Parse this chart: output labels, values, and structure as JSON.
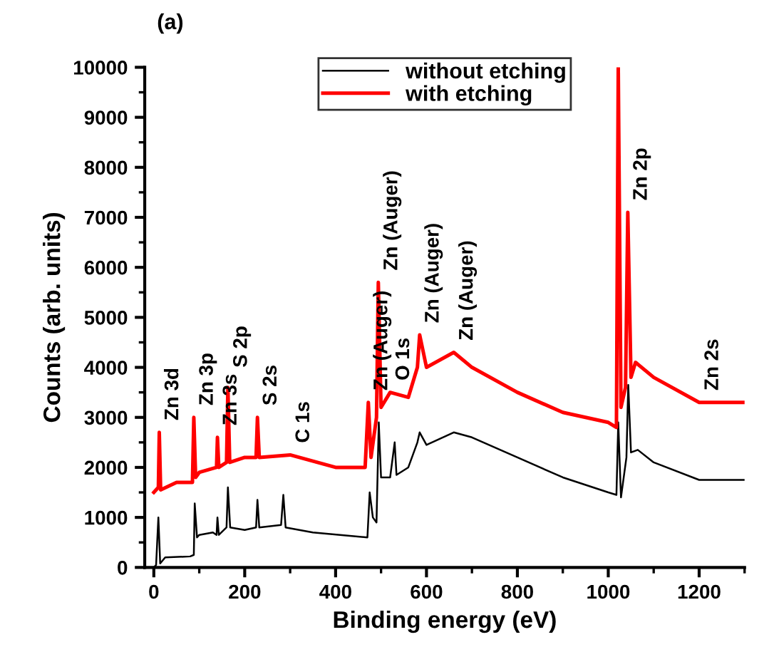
{
  "chart_data": {
    "type": "line",
    "xlabel": "Binding energy (eV)",
    "ylabel": "Counts (arb. units)",
    "xlim": [
      -20,
      1300
    ],
    "xticks": [
      0,
      200,
      400,
      600,
      800,
      1000,
      1200
    ],
    "ylim": [
      0,
      10000
    ],
    "yticks": [
      0,
      1000,
      2000,
      3000,
      4000,
      5000,
      6000,
      7000,
      8000,
      9000,
      10000
    ],
    "grid": false,
    "legend": "top",
    "line_style": "solid",
    "marker": "none",
    "series": [
      {
        "name": "without etching",
        "color": "#000000",
        "x": [
          0,
          5,
          10,
          14,
          25,
          80,
          88,
          90,
          95,
          100,
          130,
          138,
          140,
          143,
          160,
          163,
          168,
          200,
          225,
          228,
          232,
          280,
          285,
          290,
          350,
          470,
          475,
          482,
          490,
          495,
          500,
          520,
          530,
          534,
          560,
          580,
          585,
          600,
          660,
          700,
          800,
          900,
          1000,
          1018,
          1022,
          1028,
          1040,
          1044,
          1050,
          1065,
          1100,
          1200,
          1300
        ],
        "values": [
          0,
          50,
          1000,
          80,
          200,
          220,
          250,
          1280,
          600,
          650,
          700,
          650,
          1000,
          650,
          800,
          1600,
          800,
          750,
          800,
          1350,
          800,
          850,
          1450,
          800,
          700,
          600,
          1500,
          1000,
          900,
          2900,
          1800,
          1800,
          2500,
          1850,
          2000,
          2500,
          2700,
          2450,
          2700,
          2600,
          2200,
          1800,
          1500,
          1450,
          2900,
          1400,
          2200,
          3650,
          2300,
          2350,
          2100,
          1750,
          1750
        ]
      },
      {
        "name": "with etching",
        "color": "#ff0000",
        "x": [
          0,
          10,
          12,
          15,
          50,
          85,
          88,
          92,
          100,
          138,
          140,
          143,
          160,
          163,
          167,
          200,
          225,
          228,
          232,
          300,
          400,
          465,
          472,
          478,
          490,
          494,
          500,
          520,
          560,
          580,
          585,
          600,
          660,
          700,
          800,
          900,
          1000,
          1018,
          1022,
          1028,
          1038,
          1043,
          1050,
          1060,
          1100,
          1200,
          1300
        ],
        "values": [
          1500,
          1600,
          2700,
          1550,
          1700,
          1700,
          3000,
          1800,
          1900,
          2000,
          2600,
          2000,
          2100,
          3600,
          2100,
          2200,
          2200,
          3000,
          2200,
          2250,
          2000,
          2000,
          3300,
          2200,
          3000,
          5700,
          3200,
          3500,
          3400,
          4000,
          4650,
          4000,
          4300,
          4000,
          3500,
          3100,
          2900,
          2800,
          10000,
          3200,
          3600,
          7100,
          3800,
          4100,
          3800,
          3300,
          3300
        ]
      }
    ],
    "annotations": [
      "(a)",
      {
        "text": "Zn 3d",
        "x": 12,
        "y": 2700
      },
      {
        "text": "Zn 3p",
        "x": 88,
        "y": 3000
      },
      {
        "text": "Zn 3s",
        "x": 140,
        "y": 2600
      },
      {
        "text": "S 2p",
        "x": 163,
        "y": 3600
      },
      {
        "text": "S 2s",
        "x": 228,
        "y": 3000
      },
      {
        "text": "C 1s",
        "x": 300,
        "y": 2250
      },
      {
        "text": "Zn (Auger)",
        "x": 472,
        "y": 3300
      },
      {
        "text": "Zn (Auger)",
        "x": 494,
        "y": 5700
      },
      {
        "text": "O 1s",
        "x": 520,
        "y": 3500
      },
      {
        "text": "Zn (Auger)",
        "x": 585,
        "y": 4650
      },
      {
        "text": "Zn (Auger)",
        "x": 660,
        "y": 4300
      },
      {
        "text": "Zn 2p",
        "x": 1043,
        "y": 7100
      },
      {
        "text": "Zn 2s",
        "x": 1200,
        "y": 3300
      }
    ]
  }
}
